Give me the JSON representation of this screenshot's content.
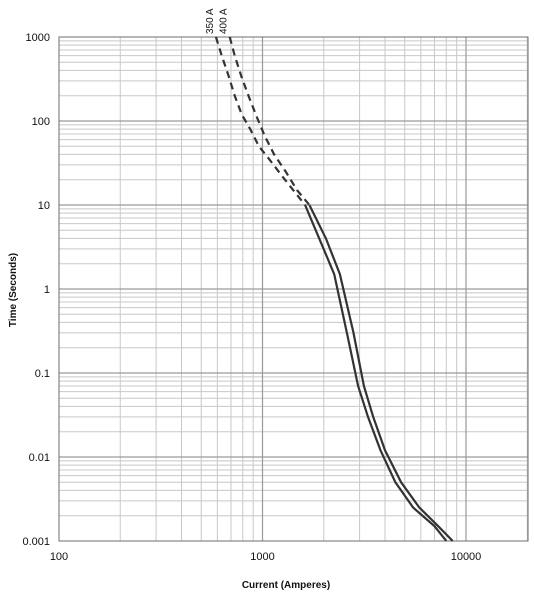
{
  "chart_data": {
    "type": "line",
    "title": "",
    "xlabel": "Current  (Amperes)",
    "ylabel": "Time (Seconds)",
    "x_scale": "log",
    "y_scale": "log",
    "xlim": [
      100,
      20000
    ],
    "ylim": [
      0.001,
      1000
    ],
    "x_tick_labels": [
      {
        "value": 100,
        "label": "100"
      },
      {
        "value": 1000,
        "label": "1000"
      },
      {
        "value": 10000,
        "label": "10000"
      }
    ],
    "y_tick_labels": [
      {
        "value": 1000,
        "label": "1000"
      },
      {
        "value": 100,
        "label": "100"
      },
      {
        "value": 10,
        "label": "10"
      },
      {
        "value": 1,
        "label": "1"
      },
      {
        "value": 0.1,
        "label": "0.1"
      },
      {
        "value": 0.01,
        "label": "0.01"
      },
      {
        "value": 0.001,
        "label": "0.001"
      }
    ],
    "grid": true,
    "line_color": "#333333",
    "grid_color": "#c8c8c8",
    "series": [
      {
        "name": "350 A",
        "dashed_segment": {
          "x": [
            590,
            630,
            680,
            730,
            790,
            870,
            960,
            1080,
            1250,
            1450,
            1620
          ],
          "y": [
            1000,
            600,
            350,
            200,
            120,
            80,
            50,
            35,
            22,
            14,
            10
          ]
        },
        "solid_segment": {
          "x": [
            1620,
            1900,
            2250,
            2600,
            2950,
            3300,
            3800,
            4500,
            5500,
            7000,
            8000
          ],
          "y": [
            10,
            4,
            1.5,
            0.3,
            0.07,
            0.03,
            0.012,
            0.005,
            0.0025,
            0.0015,
            0.001
          ]
        }
      },
      {
        "name": "400 A",
        "dashed_segment": {
          "x": [
            690,
            730,
            790,
            860,
            940,
            1030,
            1140,
            1300,
            1480,
            1700
          ],
          "y": [
            1000,
            600,
            330,
            190,
            110,
            65,
            40,
            25,
            15,
            10
          ]
        },
        "solid_segment": {
          "x": [
            1700,
            2050,
            2400,
            2800,
            3150,
            3500,
            4000,
            4800,
            5900,
            7300,
            8600
          ],
          "y": [
            10,
            4,
            1.5,
            0.3,
            0.07,
            0.03,
            0.012,
            0.005,
            0.0025,
            0.0015,
            0.001
          ]
        }
      }
    ]
  }
}
